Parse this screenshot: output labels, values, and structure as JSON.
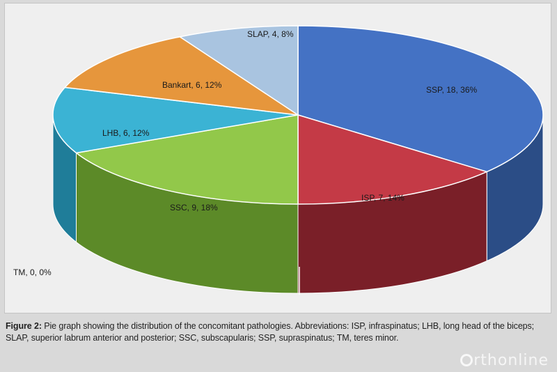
{
  "chart_data": {
    "type": "pie",
    "three_d": true,
    "title": "",
    "slices": [
      {
        "name": "SSP",
        "value": 18,
        "percent": "36%",
        "label": "SSP, 18, 36%",
        "color": "#4472c4",
        "side": "#2b4d86"
      },
      {
        "name": "ISP",
        "value": 7,
        "percent": "14%",
        "label": "ISP, 7, 14%",
        "color": "#c43a46",
        "side": "#7a1f28"
      },
      {
        "name": "TM",
        "value": 0,
        "percent": "0%",
        "label": "TM, 0, 0%",
        "color": "#7f5fa8",
        "side": "#4f3a6e"
      },
      {
        "name": "SSC",
        "value": 9,
        "percent": "18%",
        "label": "SSC, 9, 18%",
        "color": "#92c84a",
        "side": "#5c8a28"
      },
      {
        "name": "LHB",
        "value": 6,
        "percent": "12%",
        "label": "LHB, 6, 12%",
        "color": "#3bb3d4",
        "side": "#1f7d99"
      },
      {
        "name": "Bankart",
        "value": 6,
        "percent": "12%",
        "label": "Bankart, 6, 12%",
        "color": "#e6963c",
        "side": "#a8651f"
      },
      {
        "name": "SLAP",
        "value": 4,
        "percent": "8%",
        "label": "SLAP, 4, 8%",
        "color": "#a9c4e0",
        "side": "#6f8dae"
      }
    ]
  },
  "caption": {
    "figure_label": "Figure 2:",
    "text": " Pie graph showing the distribution of the concomitant pathologies. Abbreviations: ISP, infraspinatus; LHB, long head of the biceps; SLAP, superior labrum anterior and posterior; SSC, subscapularis; SSP, supraspinatus; TM, teres minor."
  },
  "watermark": {
    "text": "rthonline"
  }
}
